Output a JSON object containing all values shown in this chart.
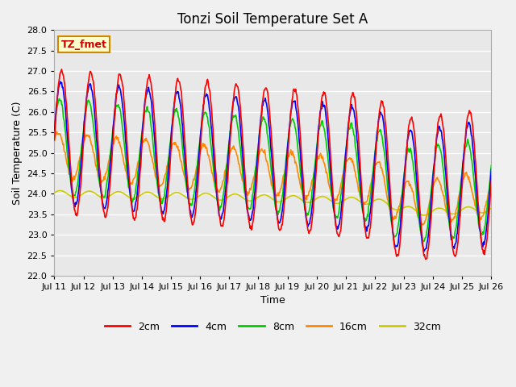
{
  "title": "Tonzi Soil Temperature Set A",
  "xlabel": "Time",
  "ylabel": "Soil Temperature (C)",
  "ylim": [
    22.0,
    28.0
  ],
  "yticks": [
    22.0,
    22.5,
    23.0,
    23.5,
    24.0,
    24.5,
    25.0,
    25.5,
    26.0,
    26.5,
    27.0,
    27.5,
    28.0
  ],
  "xtick_labels": [
    "Jul 11",
    "Jul 12",
    "Jul 13",
    "Jul 14",
    "Jul 15",
    "Jul 16",
    "Jul 17",
    "Jul 18",
    "Jul 19",
    "Jul 20",
    "Jul 21",
    "Jul 22",
    "Jul 23",
    "Jul 24",
    "Jul 25",
    "Jul 26"
  ],
  "colors": {
    "2cm": "#ff0000",
    "4cm": "#0000ff",
    "8cm": "#00cc00",
    "16cm": "#ff8800",
    "32cm": "#cccc00"
  },
  "legend_labels": [
    "2cm",
    "4cm",
    "8cm",
    "16cm",
    "32cm"
  ],
  "annotation_text": "TZ_fmet",
  "annotation_color": "#cc0000",
  "annotation_bg": "#ffffcc",
  "annotation_border": "#cc8800",
  "fig_bg_color": "#f0f0f0",
  "plot_bg_color": "#e8e8e8",
  "grid_color": "#ffffff",
  "title_fontsize": 12,
  "axis_label_fontsize": 9,
  "tick_fontsize": 8,
  "legend_fontsize": 9,
  "n_points": 720
}
